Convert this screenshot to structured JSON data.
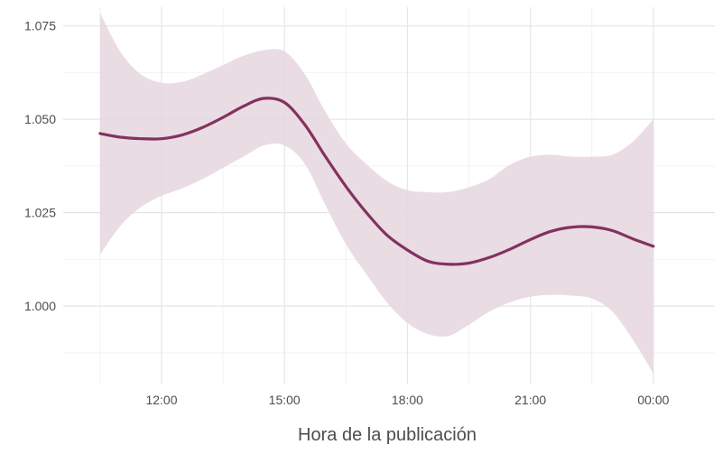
{
  "chart_data": {
    "type": "line",
    "title": "",
    "xlabel": "Hora de la publicación",
    "ylabel": "",
    "x_unit": "hours",
    "x_ticks": [
      {
        "value": 12,
        "label": "12:00"
      },
      {
        "value": 15,
        "label": "15:00"
      },
      {
        "value": 18,
        "label": "18:00"
      },
      {
        "value": 21,
        "label": "21:00"
      },
      {
        "value": 24,
        "label": "00:00"
      }
    ],
    "y_ticks": [
      {
        "value": 1.0,
        "label": "1.000"
      },
      {
        "value": 1.025,
        "label": "1.025"
      },
      {
        "value": 1.05,
        "label": "1.050"
      },
      {
        "value": 1.075,
        "label": "1.075"
      }
    ],
    "xlim": [
      9.6,
      25.5
    ],
    "ylim": [
      0.979,
      1.08
    ],
    "grid": true,
    "legend": "none",
    "colors": {
      "line": "#83325f",
      "band": "#e6d6de",
      "grid_major": "#e6e6e6",
      "grid_minor": "#f2f2f2"
    },
    "series": [
      {
        "x": [
          10.5,
          11.0,
          11.5,
          12.0,
          12.5,
          13.0,
          13.5,
          14.0,
          14.5,
          15.0,
          15.5,
          16.0,
          16.5,
          17.0,
          17.5,
          18.0,
          18.5,
          19.0,
          19.5,
          20.0,
          20.5,
          21.0,
          21.5,
          22.0,
          22.5,
          23.0,
          23.5,
          24.0
        ],
        "y": [
          1.0462,
          1.0452,
          1.0448,
          1.0448,
          1.0458,
          1.0478,
          1.0505,
          1.0535,
          1.0556,
          1.0545,
          1.0485,
          1.04,
          1.032,
          1.025,
          1.019,
          1.015,
          1.012,
          1.0112,
          1.0115,
          1.013,
          1.0152,
          1.0178,
          1.02,
          1.0211,
          1.0212,
          1.0202,
          1.018,
          1.016
        ],
        "lower": [
          1.0138,
          1.0215,
          1.0265,
          1.0295,
          1.0315,
          1.034,
          1.037,
          1.04,
          1.043,
          1.043,
          1.038,
          1.027,
          1.0165,
          1.0085,
          1.001,
          0.9955,
          0.9925,
          0.992,
          0.995,
          0.9985,
          1.001,
          1.0025,
          1.003,
          1.0028,
          1.002,
          0.9985,
          0.991,
          0.982
        ],
        "upper": [
          1.0785,
          1.068,
          1.062,
          1.0598,
          1.06,
          1.062,
          1.0645,
          1.067,
          1.0685,
          1.0682,
          1.062,
          1.052,
          1.0435,
          1.038,
          1.0335,
          1.031,
          1.0305,
          1.0305,
          1.0318,
          1.034,
          1.0378,
          1.04,
          1.0405,
          1.04,
          1.04,
          1.0405,
          1.044,
          1.05
        ]
      }
    ]
  }
}
